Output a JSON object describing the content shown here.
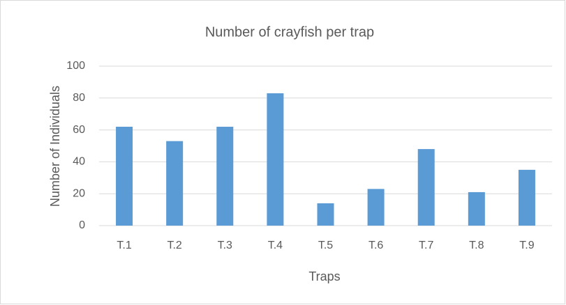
{
  "chart_data": {
    "type": "bar",
    "title": "Number of crayfish per trap",
    "x_label": "Traps",
    "y_label": "Number of Individuals",
    "categories": [
      "T.1",
      "T.2",
      "T.3",
      "T.4",
      "T.5",
      "T.6",
      "T.7",
      "T.8",
      "T.9"
    ],
    "values": [
      62,
      53,
      62,
      83,
      14,
      23,
      48,
      21,
      35
    ],
    "color": "#5b9bd5",
    "ylim": [
      0,
      100
    ],
    "yticks": [
      0,
      20,
      40,
      60,
      80,
      100
    ],
    "grid": true
  }
}
